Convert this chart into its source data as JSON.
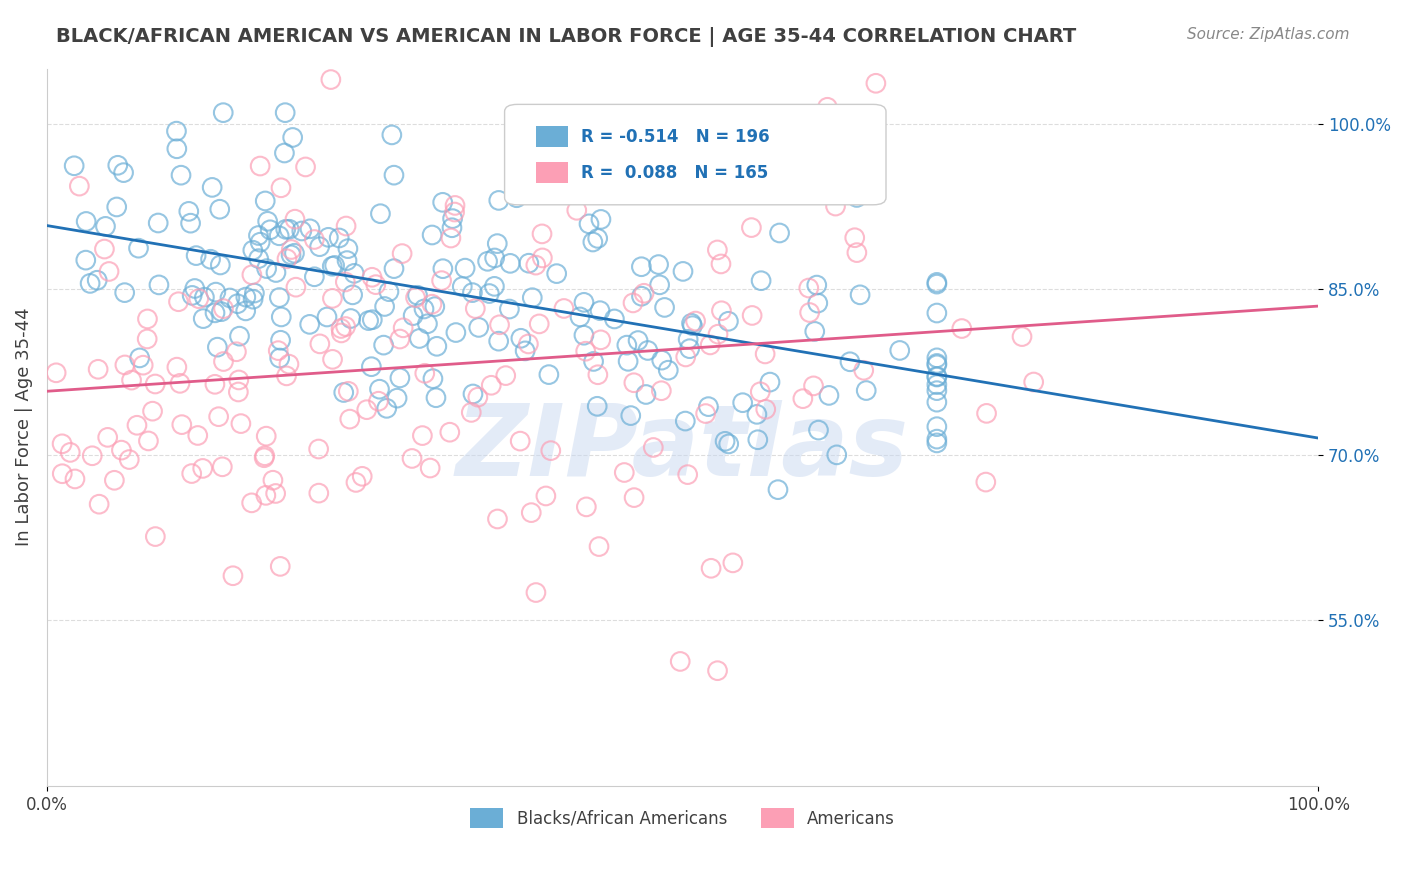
{
  "title": "BLACK/AFRICAN AMERICAN VS AMERICAN IN LABOR FORCE | AGE 35-44 CORRELATION CHART",
  "source": "Source: ZipAtlas.com",
  "xlabel": "",
  "ylabel": "In Labor Force | Age 35-44",
  "xlim": [
    0.0,
    1.0
  ],
  "ylim": [
    0.4,
    1.05
  ],
  "yticks": [
    0.55,
    0.7,
    0.85,
    1.0
  ],
  "ytick_labels": [
    "55.0%",
    "70.0%",
    "85.0%",
    "100.0%"
  ],
  "xtick_labels": [
    "0.0%",
    "100.0%"
  ],
  "blue_R": -0.514,
  "blue_N": 196,
  "pink_R": 0.088,
  "pink_N": 165,
  "blue_color": "#6baed6",
  "pink_color": "#fc9fb5",
  "blue_line_color": "#2171b5",
  "pink_line_color": "#e05c8a",
  "background_color": "#ffffff",
  "grid_color": "#dddddd",
  "title_color": "#404040",
  "watermark_color": "#c8d8f0",
  "watermark_text": "ZIPatlas",
  "legend_R_color": "#e05c8a",
  "legend_N_color": "#2171b5"
}
